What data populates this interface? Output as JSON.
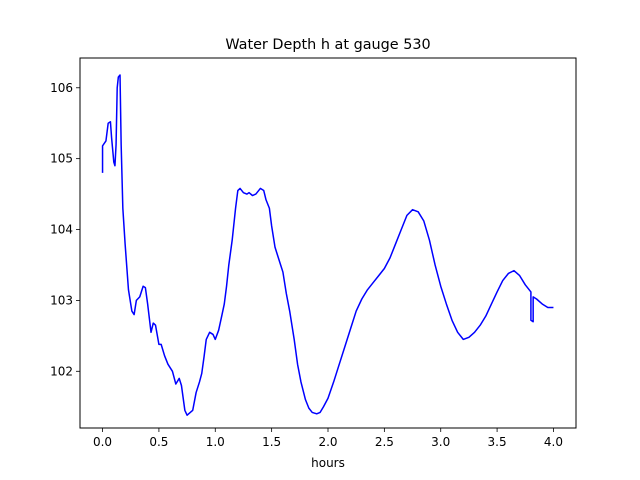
{
  "chart_data": {
    "type": "line",
    "title": "Water Depth h at gauge 530",
    "xlabel": "hours",
    "ylabel": "",
    "xlim": [
      -0.2,
      4.2
    ],
    "ylim": [
      101.2,
      106.42
    ],
    "xticks": [
      0.0,
      0.5,
      1.0,
      1.5,
      2.0,
      2.5,
      3.0,
      3.5,
      4.0
    ],
    "xtick_labels": [
      "0.0",
      "0.5",
      "1.0",
      "1.5",
      "2.0",
      "2.5",
      "3.0",
      "3.5",
      "4.0"
    ],
    "yticks": [
      102,
      103,
      104,
      105,
      106
    ],
    "ytick_labels": [
      "102",
      "103",
      "104",
      "105",
      "106"
    ],
    "grid": false,
    "series": [
      {
        "color": "#0000ff",
        "x": [
          0.0,
          0.0,
          0.03,
          0.05,
          0.07,
          0.08,
          0.1,
          0.11,
          0.12,
          0.13,
          0.14,
          0.155,
          0.165,
          0.18,
          0.2,
          0.23,
          0.26,
          0.28,
          0.3,
          0.33,
          0.36,
          0.38,
          0.4,
          0.43,
          0.45,
          0.47,
          0.5,
          0.52,
          0.55,
          0.58,
          0.62,
          0.65,
          0.68,
          0.7,
          0.73,
          0.75,
          0.8,
          0.83,
          0.86,
          0.88,
          0.9,
          0.92,
          0.95,
          0.98,
          1.0,
          1.03,
          1.06,
          1.08,
          1.1,
          1.12,
          1.15,
          1.18,
          1.2,
          1.22,
          1.25,
          1.28,
          1.3,
          1.33,
          1.36,
          1.4,
          1.43,
          1.45,
          1.48,
          1.5,
          1.53,
          1.55,
          1.58,
          1.6,
          1.63,
          1.66,
          1.7,
          1.73,
          1.76,
          1.8,
          1.83,
          1.86,
          1.9,
          1.93,
          1.96,
          2.0,
          2.05,
          2.1,
          2.15,
          2.2,
          2.25,
          2.3,
          2.35,
          2.4,
          2.45,
          2.5,
          2.55,
          2.6,
          2.65,
          2.7,
          2.75,
          2.8,
          2.85,
          2.9,
          2.95,
          3.0,
          3.05,
          3.1,
          3.15,
          3.2,
          3.25,
          3.3,
          3.35,
          3.4,
          3.45,
          3.5,
          3.55,
          3.6,
          3.65,
          3.7,
          3.75,
          3.8,
          3.8,
          3.82,
          3.82,
          3.85,
          3.9,
          3.95,
          4.0
        ],
        "y": [
          104.8,
          105.18,
          105.25,
          105.5,
          105.52,
          105.3,
          104.95,
          104.9,
          105.2,
          106.0,
          106.15,
          106.18,
          105.2,
          104.3,
          103.8,
          103.15,
          102.85,
          102.8,
          103.0,
          103.05,
          103.2,
          103.18,
          102.95,
          102.55,
          102.68,
          102.65,
          102.38,
          102.38,
          102.22,
          102.1,
          102.0,
          101.82,
          101.9,
          101.8,
          101.45,
          101.38,
          101.45,
          101.7,
          101.85,
          101.97,
          102.2,
          102.45,
          102.55,
          102.52,
          102.45,
          102.58,
          102.8,
          102.95,
          103.2,
          103.5,
          103.85,
          104.3,
          104.55,
          104.58,
          104.52,
          104.5,
          104.52,
          104.48,
          104.5,
          104.58,
          104.55,
          104.42,
          104.3,
          104.05,
          103.75,
          103.65,
          103.5,
          103.4,
          103.1,
          102.85,
          102.45,
          102.1,
          101.85,
          101.6,
          101.48,
          101.42,
          101.4,
          101.42,
          101.5,
          101.62,
          101.85,
          102.1,
          102.35,
          102.6,
          102.85,
          103.02,
          103.15,
          103.25,
          103.35,
          103.45,
          103.6,
          103.8,
          104.0,
          104.2,
          104.28,
          104.25,
          104.12,
          103.85,
          103.5,
          103.2,
          102.95,
          102.72,
          102.55,
          102.45,
          102.48,
          102.55,
          102.65,
          102.78,
          102.95,
          103.12,
          103.28,
          103.38,
          103.42,
          103.35,
          103.22,
          103.12,
          102.72,
          102.7,
          103.05,
          103.02,
          102.95,
          102.9,
          102.9
        ]
      }
    ]
  }
}
